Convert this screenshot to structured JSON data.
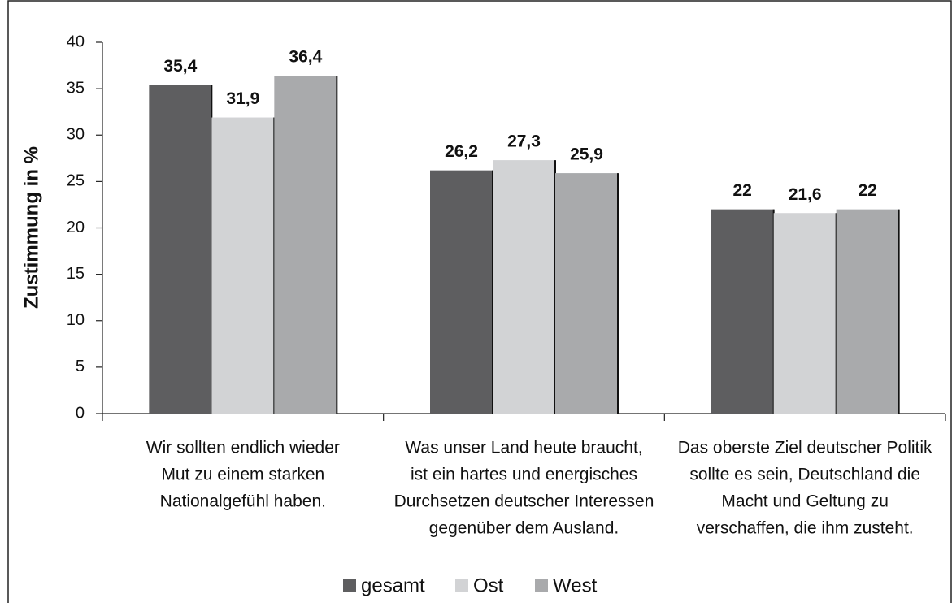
{
  "chart_data": {
    "type": "bar",
    "y_label": "Zustimmung in %",
    "categories": [
      [
        "Wir sollten endlich wieder",
        "Mut zu einem starken",
        "Nationalgefühl haben."
      ],
      [
        "Was unser Land heute braucht,",
        "ist ein hartes und energisches",
        "Durchsetzen deutscher Interessen",
        "gegenüber dem Ausland."
      ],
      [
        "Das oberste Ziel deutscher Politik",
        "sollte es sein, Deutschland die",
        "Macht und Geltung zu",
        "verschaffen, die ihm zusteht."
      ]
    ],
    "series": [
      {
        "name": "gesamt",
        "color": "#5e5e60",
        "values": [
          35.4,
          26.2,
          22
        ],
        "value_labels": [
          "35,4",
          "26,2",
          "22"
        ]
      },
      {
        "name": "Ost",
        "color": "#d2d3d5",
        "values": [
          31.9,
          27.3,
          21.6
        ],
        "value_labels": [
          "31,9",
          "27,3",
          "21,6"
        ]
      },
      {
        "name": "West",
        "color": "#a9aaac",
        "values": [
          36.4,
          25.9,
          22
        ],
        "value_labels": [
          "36,4",
          "25,9",
          "22"
        ]
      }
    ],
    "ylim": [
      0,
      40
    ],
    "yticks": [
      0,
      5,
      10,
      15,
      20,
      25,
      30,
      35,
      40
    ],
    "legend": "bottom"
  }
}
